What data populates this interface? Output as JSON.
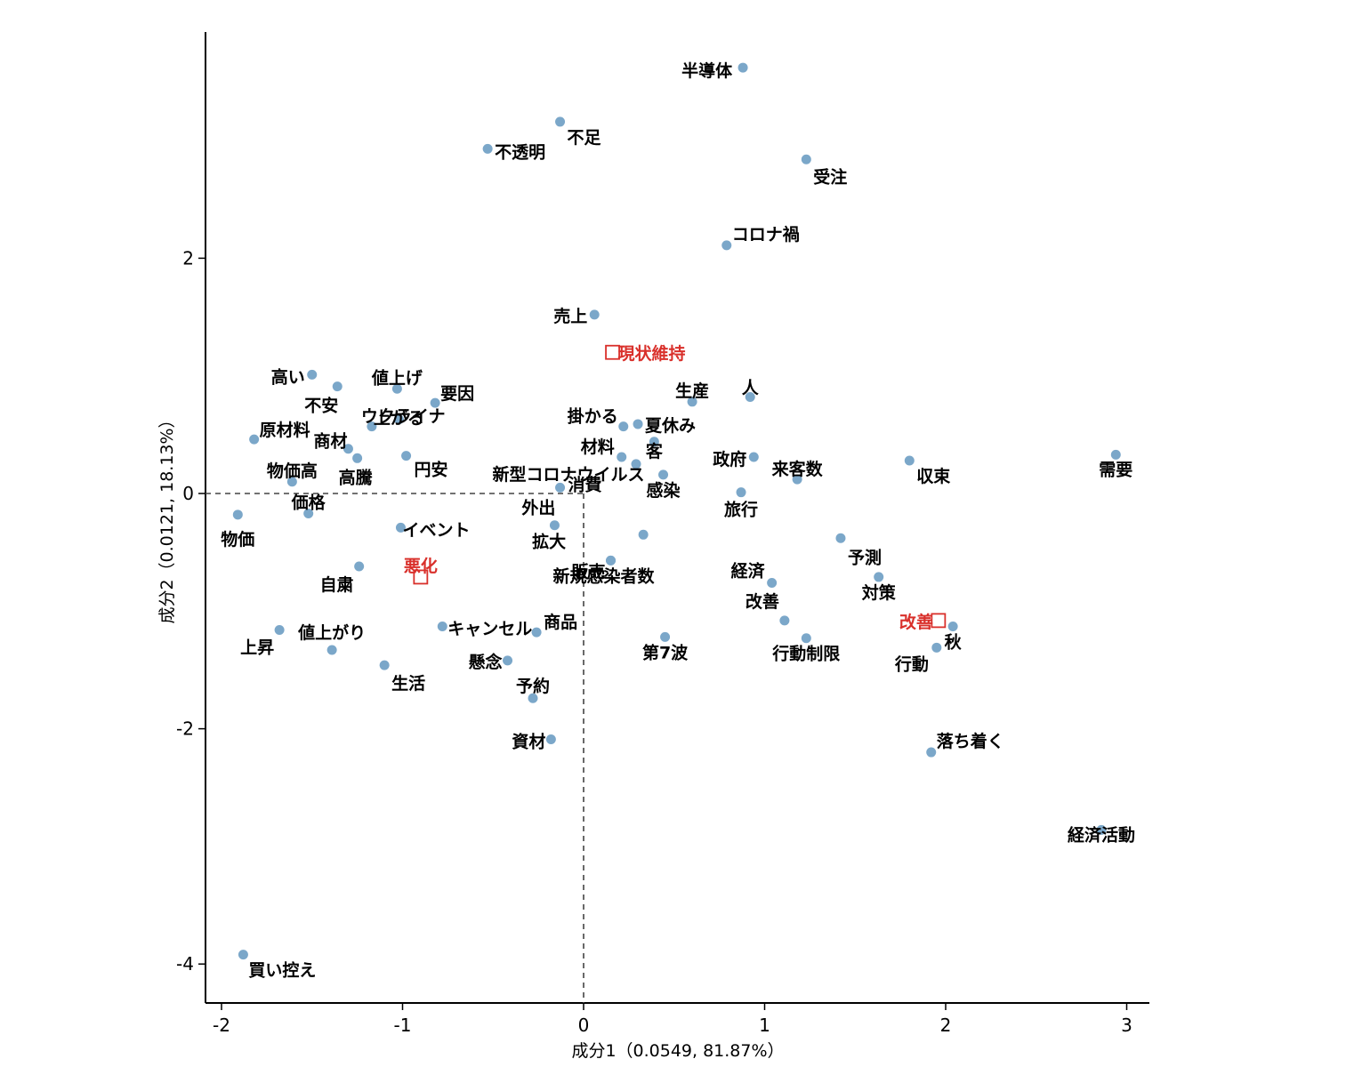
{
  "chart_data": {
    "type": "scatter",
    "title": "",
    "xlabel": "成分1（0.0549, 81.87%）",
    "ylabel": "成分2（0.0121, 18.13%）",
    "xlim": [
      -2.1,
      3.12
    ],
    "ylim": [
      -4.18,
      3.96
    ],
    "xticks": [
      -2,
      -1,
      0,
      1,
      2,
      3
    ],
    "yticks": [
      -4,
      -2,
      0,
      2
    ],
    "tick_labels_x": [
      "-2",
      "-1",
      "0",
      "1",
      "2",
      "3"
    ],
    "tick_labels_y": [
      "-4",
      "-2",
      "0",
      "2"
    ],
    "reference_lines": {
      "x": 0,
      "y": 0,
      "style": "dashed"
    },
    "grid": false,
    "colors": {
      "words": "#7ba7c9",
      "categories": "#d9302b"
    },
    "series": [
      {
        "name": "words",
        "marker": "circle",
        "points": [
          {
            "label": "半導体",
            "x": 0.88,
            "y": 3.62
          },
          {
            "label": "不足",
            "x": -0.13,
            "y": 3.16
          },
          {
            "label": "不透明",
            "x": -0.53,
            "y": 2.93
          },
          {
            "label": "受注",
            "x": 1.23,
            "y": 2.84
          },
          {
            "label": "コロナ禍",
            "x": 0.79,
            "y": 2.11
          },
          {
            "label": "売上",
            "x": 0.06,
            "y": 1.52
          },
          {
            "label": "高い",
            "x": -1.5,
            "y": 1.01
          },
          {
            "label": "不安",
            "x": -1.36,
            "y": 0.91
          },
          {
            "label": "値上げ",
            "x": -1.03,
            "y": 0.89
          },
          {
            "label": "要因",
            "x": -0.82,
            "y": 0.77
          },
          {
            "label": "上がる",
            "x": -1.02,
            "y": 0.63
          },
          {
            "label": "生産",
            "x": 0.6,
            "y": 0.78
          },
          {
            "label": "人",
            "x": 0.92,
            "y": 0.82
          },
          {
            "label": "原材料",
            "x": -1.82,
            "y": 0.46
          },
          {
            "label": "商材",
            "x": -1.3,
            "y": 0.38
          },
          {
            "label": "ウクライナ",
            "x": -1.17,
            "y": 0.57
          },
          {
            "label": "高騰",
            "x": -1.25,
            "y": 0.3
          },
          {
            "label": "円安",
            "x": -0.98,
            "y": 0.32
          },
          {
            "label": "掛かる",
            "x": 0.22,
            "y": 0.57
          },
          {
            "label": "夏休み",
            "x": 0.3,
            "y": 0.59
          },
          {
            "label": "材料",
            "x": 0.21,
            "y": 0.31
          },
          {
            "label": "客",
            "x": 0.39,
            "y": 0.44
          },
          {
            "label": "新型コロナウイルス",
            "x": 0.29,
            "y": 0.25
          },
          {
            "label": "感染",
            "x": 0.44,
            "y": 0.16
          },
          {
            "label": "消費",
            "x": -0.13,
            "y": 0.05
          },
          {
            "label": "政府",
            "x": 0.94,
            "y": 0.31
          },
          {
            "label": "来客数",
            "x": 1.18,
            "y": 0.12
          },
          {
            "label": "収束",
            "x": 1.8,
            "y": 0.28
          },
          {
            "label": "需要",
            "x": 2.94,
            "y": 0.33
          },
          {
            "label": "物価高",
            "x": -1.61,
            "y": 0.1
          },
          {
            "label": "価格",
            "x": -1.52,
            "y": -0.17
          },
          {
            "label": "物価",
            "x": -1.91,
            "y": -0.18
          },
          {
            "label": "旅行",
            "x": 0.87,
            "y": 0.01
          },
          {
            "label": "外出",
            "x": -0.16,
            "y": -0.27
          },
          {
            "label": "イベント",
            "x": -1.01,
            "y": -0.29
          },
          {
            "label": "拡大",
            "x": 0.33,
            "y": -0.35
          },
          {
            "label": "新規感染者数",
            "x": 0.15,
            "y": -0.57
          },
          {
            "label": "予測",
            "x": 1.42,
            "y": -0.38
          },
          {
            "label": "自粛",
            "x": -1.24,
            "y": -0.62
          },
          {
            "label": "販売",
            "x": 0.15,
            "y": -0.57
          },
          {
            "label": "経済",
            "x": 1.04,
            "y": -0.76
          },
          {
            "label": "対策",
            "x": 1.63,
            "y": -0.71
          },
          {
            "label": "改善",
            "x": 1.11,
            "y": -1.08
          },
          {
            "label": "上昇",
            "x": -1.68,
            "y": -1.16
          },
          {
            "label": "値上がり",
            "x": -1.39,
            "y": -1.33
          },
          {
            "label": "キャンセル",
            "x": -0.78,
            "y": -1.13
          },
          {
            "label": "商品",
            "x": -0.26,
            "y": -1.18
          },
          {
            "label": "第7波",
            "x": 0.45,
            "y": -1.22
          },
          {
            "label": "行動制限",
            "x": 1.23,
            "y": -1.23
          },
          {
            "label": "秋",
            "x": 2.04,
            "y": -1.13
          },
          {
            "label": "行動",
            "x": 1.95,
            "y": -1.31
          },
          {
            "label": "生活",
            "x": -1.1,
            "y": -1.46
          },
          {
            "label": "懸念",
            "x": -0.42,
            "y": -1.42
          },
          {
            "label": "予約",
            "x": -0.28,
            "y": -1.74
          },
          {
            "label": "資材",
            "x": -0.18,
            "y": -2.09
          },
          {
            "label": "落ち着く",
            "x": 1.92,
            "y": -2.2
          },
          {
            "label": "経済活動",
            "x": 2.86,
            "y": -2.86
          },
          {
            "label": "買い控え",
            "x": -1.88,
            "y": -3.92
          }
        ]
      },
      {
        "name": "categories",
        "marker": "square-open",
        "points": [
          {
            "label": "現状維持",
            "x": 0.16,
            "y": 1.2
          },
          {
            "label": "悪化",
            "x": -0.9,
            "y": -0.71
          },
          {
            "label": "改善",
            "x": 1.96,
            "y": -1.08
          }
        ]
      }
    ]
  }
}
